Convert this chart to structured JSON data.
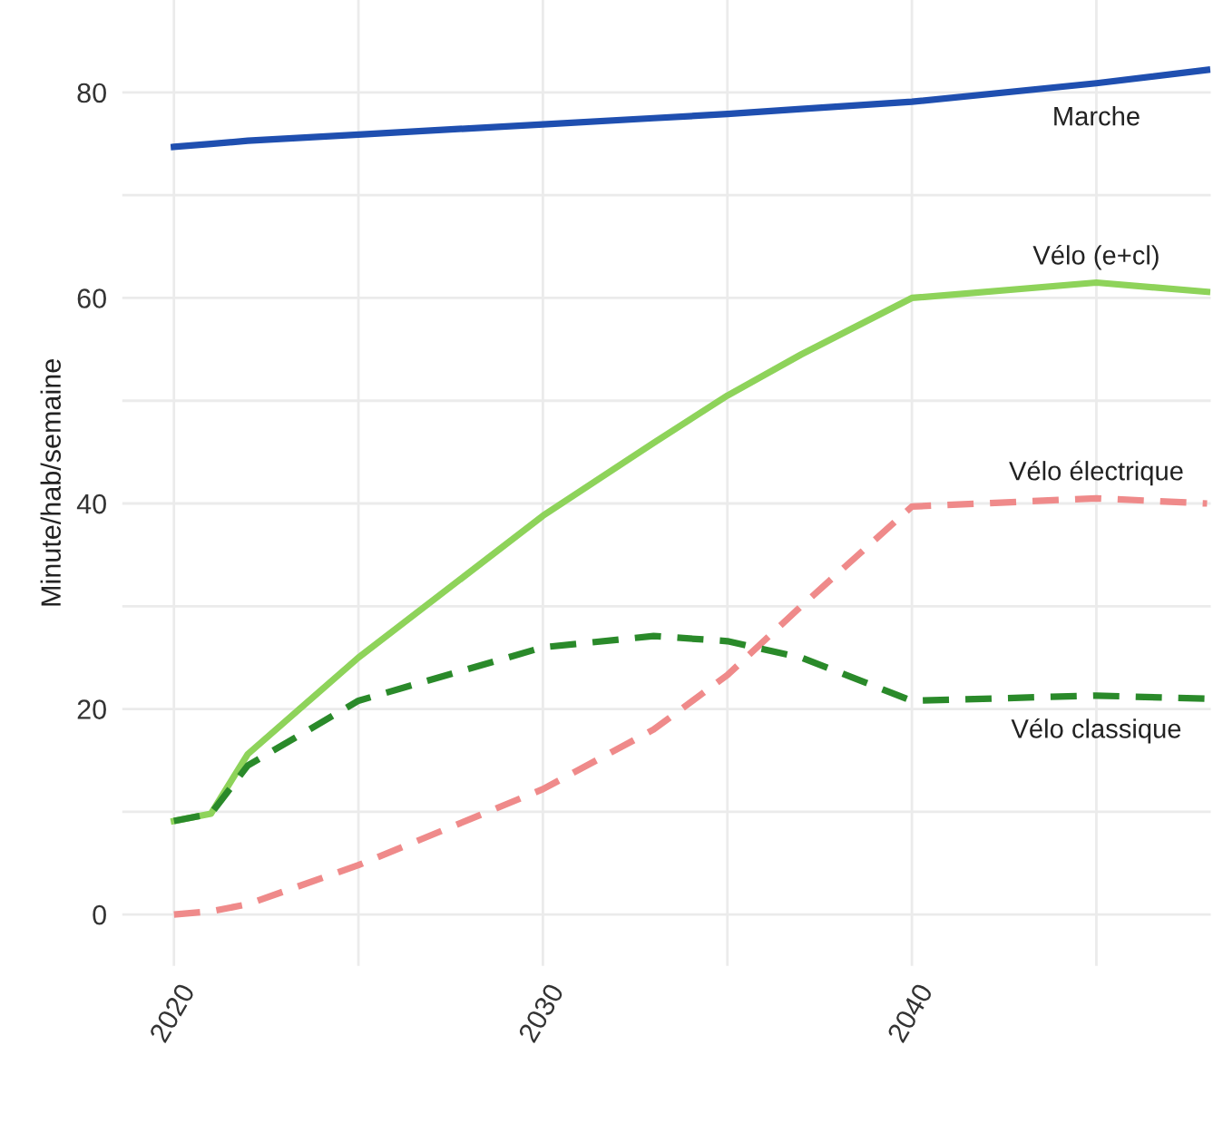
{
  "chart_data": {
    "type": "line",
    "ylabel": "Minute/hab/semaine",
    "x": [
      2020,
      2021,
      2022,
      2025,
      2030,
      2033,
      2035,
      2037,
      2040,
      2045,
      2048
    ],
    "series": [
      {
        "name": "Marche",
        "color": "#1f4fb0",
        "line_style": "solid",
        "values": [
          74.7,
          75.0,
          75.3,
          75.9,
          76.9,
          77.5,
          77.9,
          78.4,
          79.1,
          80.9,
          82.2
        ]
      },
      {
        "name": "Vélo (e+cl)",
        "color": "#8ed35a",
        "line_style": "solid",
        "values": [
          9.1,
          9.8,
          15.6,
          25.0,
          38.8,
          45.9,
          50.5,
          54.5,
          60.0,
          61.5,
          60.6
        ]
      },
      {
        "name": "Vélo électrique",
        "color": "#ef8a8a",
        "line_style": "dashed",
        "values": [
          0.0,
          0.3,
          1.0,
          4.8,
          12.2,
          18.0,
          23.3,
          30.0,
          39.7,
          40.5,
          40.0
        ]
      },
      {
        "name": "Vélo classique",
        "color": "#2a8a2a",
        "line_style": "dashed",
        "values": [
          9.1,
          9.8,
          14.5,
          20.8,
          26.0,
          27.1,
          26.6,
          25.0,
          20.8,
          21.3,
          21.0
        ]
      }
    ],
    "xlim": [
      2018.6,
      2048.1
    ],
    "ylim": [
      -5,
      89
    ],
    "xticks": [
      2020,
      {
        "value": 2025,
        "label": null
      },
      2030,
      {
        "value": 2035,
        "label": null
      },
      2040,
      {
        "value": 2045,
        "label": null
      }
    ],
    "yticks": [
      0,
      {
        "value": 10,
        "label": null
      },
      20,
      {
        "value": 30,
        "label": null
      },
      40,
      {
        "value": 50,
        "label": null
      },
      60,
      {
        "value": 70,
        "label": null
      },
      80
    ],
    "grid": true,
    "legend": false,
    "marker": "none"
  }
}
